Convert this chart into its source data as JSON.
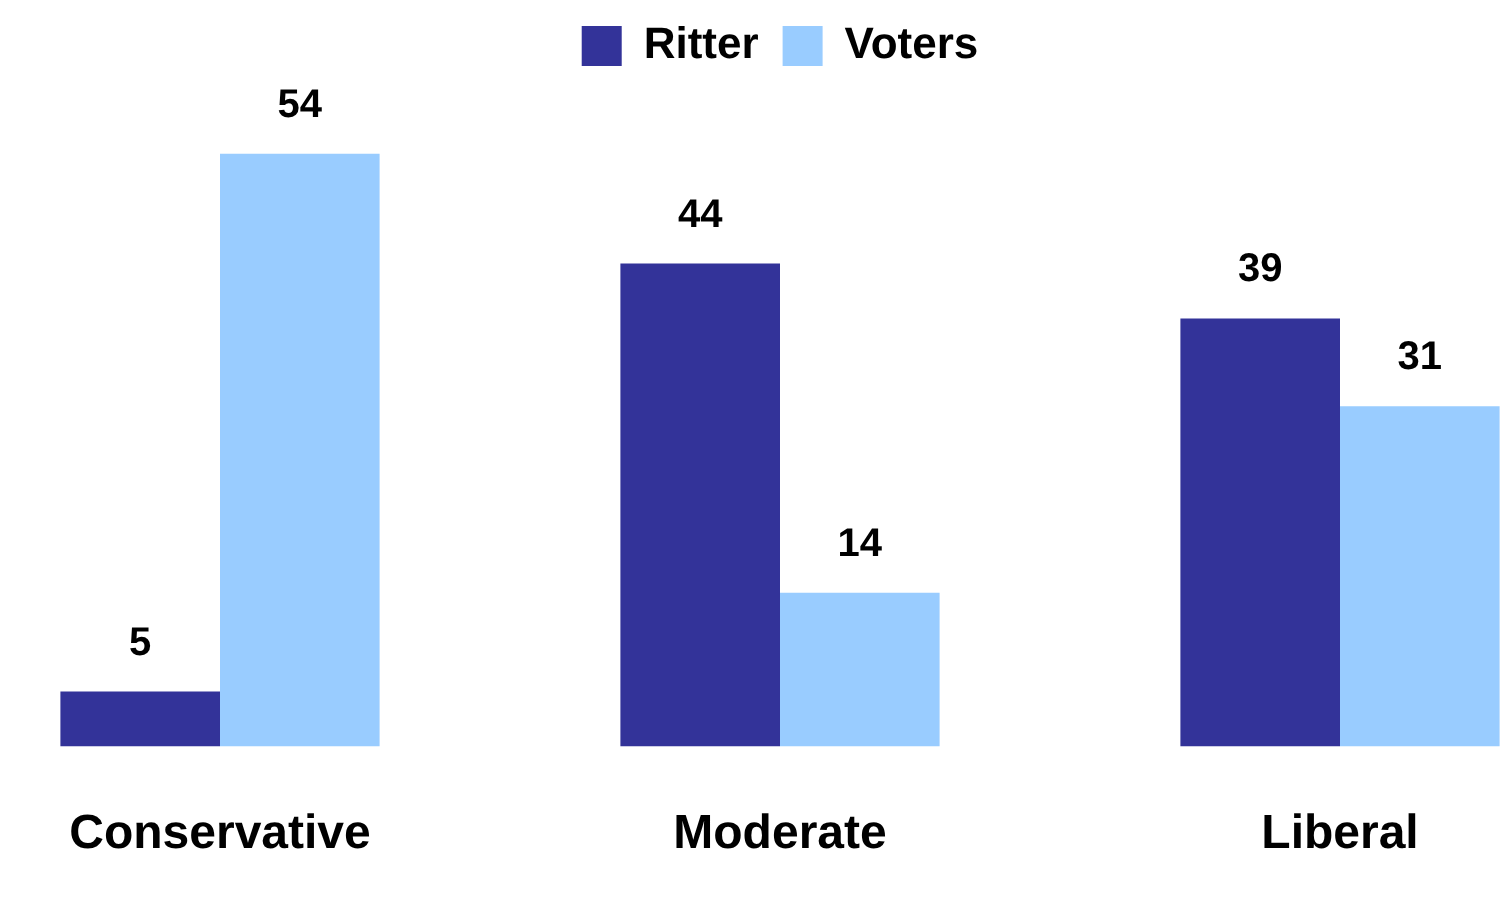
{
  "chart_data": {
    "type": "bar",
    "categories": [
      "Conservative",
      "Moderate",
      "Liberal"
    ],
    "series": [
      {
        "name": "Ritter",
        "color": "#333399",
        "values": [
          5,
          44,
          39
        ]
      },
      {
        "name": "Voters",
        "color": "#99ccff",
        "values": [
          54,
          14,
          31
        ]
      }
    ],
    "data_labels": true,
    "legend": "top",
    "grid": false
  }
}
